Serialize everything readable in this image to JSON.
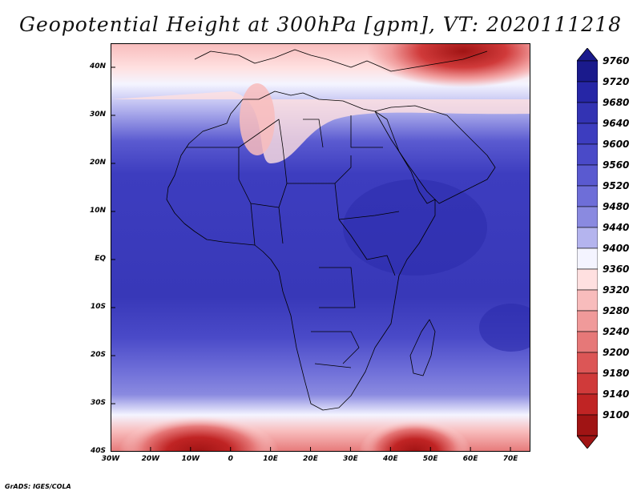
{
  "title": "Geopotential Height at 300hPa [gpm], VT: 2020111218",
  "credit": "GrADS: IGES/COLA",
  "map": {
    "lon_range": [
      -30,
      75
    ],
    "lat_range": [
      -40,
      45
    ],
    "lat_ticks": [
      {
        "value": 40,
        "label": "40N"
      },
      {
        "value": 30,
        "label": "30N"
      },
      {
        "value": 20,
        "label": "20N"
      },
      {
        "value": 10,
        "label": "10N"
      },
      {
        "value": 0,
        "label": "EQ"
      },
      {
        "value": -10,
        "label": "10S"
      },
      {
        "value": -20,
        "label": "20S"
      },
      {
        "value": -30,
        "label": "30S"
      },
      {
        "value": -40,
        "label": "40S"
      }
    ],
    "lon_ticks": [
      {
        "value": -30,
        "label": "30W"
      },
      {
        "value": -20,
        "label": "20W"
      },
      {
        "value": -10,
        "label": "10W"
      },
      {
        "value": 0,
        "label": "0"
      },
      {
        "value": 10,
        "label": "10E"
      },
      {
        "value": 20,
        "label": "20E"
      },
      {
        "value": 30,
        "label": "30E"
      },
      {
        "value": 40,
        "label": "40E"
      },
      {
        "value": 50,
        "label": "50E"
      },
      {
        "value": 60,
        "label": "60E"
      },
      {
        "value": 70,
        "label": "70E"
      }
    ]
  },
  "colorbar": {
    "levels": [
      9760,
      9720,
      9680,
      9640,
      9600,
      9560,
      9520,
      9480,
      9440,
      9400,
      9360,
      9320,
      9280,
      9240,
      9200,
      9180,
      9140,
      9100
    ],
    "colors": [
      "#1a1a8c",
      "#2626a6",
      "#3333b3",
      "#3d3dbf",
      "#4a4ac8",
      "#5a5ad0",
      "#6e6ed8",
      "#8a8ae0",
      "#b4b4ee",
      "#f4f4ff",
      "#ffe0e0",
      "#f8bcbc",
      "#f09a9a",
      "#e67878",
      "#dc5656",
      "#d03a3a",
      "#c02424",
      "#a01414"
    ]
  }
}
